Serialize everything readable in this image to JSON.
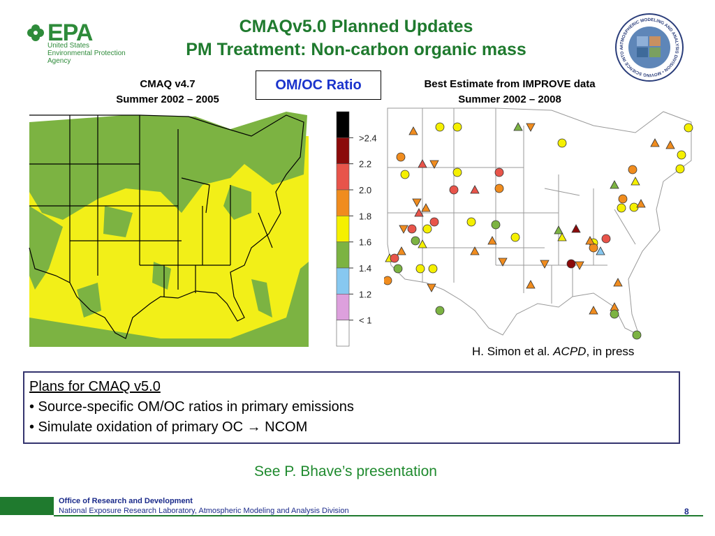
{
  "header": {
    "logo_text": "EPA",
    "agency_lines": [
      "United States",
      "Environmental Protection",
      "Agency"
    ],
    "title_line1": "CMAQv5.0 Planned Updates",
    "title_line2": "PM Treatment: Non-carbon organic mass",
    "seal_text": "ATMOSPHERIC MODELING AND ANALYSIS DIVISION • MOVING SCIENCE INTO APPLICATIONS •"
  },
  "left_panel": {
    "line1": "CMAQ v4.7",
    "line2": "Summer 2002 – 2005"
  },
  "ratio_label": "OM/OC Ratio",
  "right_panel": {
    "line1": "Best Estimate from IMPROVE data",
    "line2": "Summer 2002 – 2008"
  },
  "legend": {
    "labels": [
      ">2.4",
      "2.2",
      "2.0",
      "1.8",
      "1.6",
      "1.4",
      "1.2",
      "< 1"
    ],
    "colors": [
      "#000000",
      "#8b0a0a",
      "#e8544a",
      "#f08c1e",
      "#f5f000",
      "#7cb342",
      "#87c8f0",
      "#dda0dd",
      "#ffffff"
    ]
  },
  "citation": {
    "prefix": "H. Simon et al. ",
    "journal": "ACPD",
    "suffix": ", in press"
  },
  "plans": {
    "heading": "Plans for CMAQ v5.0",
    "bullet1": "• Source-specific OM/OC ratios in primary emissions",
    "bullet2": "• Simulate oxidation of primary OC → NCOM"
  },
  "see_also": "See P. Bhave’s presentation",
  "footer": {
    "office": "Office of Research and Development",
    "lab": "National Exposure Research Laboratory, Atmospheric Modeling and Analysis Division",
    "page": "8"
  },
  "colors": {
    "epa_green": "#1f7a2e",
    "box_border": "#34346e",
    "ratio_blue": "#1a33cc"
  }
}
